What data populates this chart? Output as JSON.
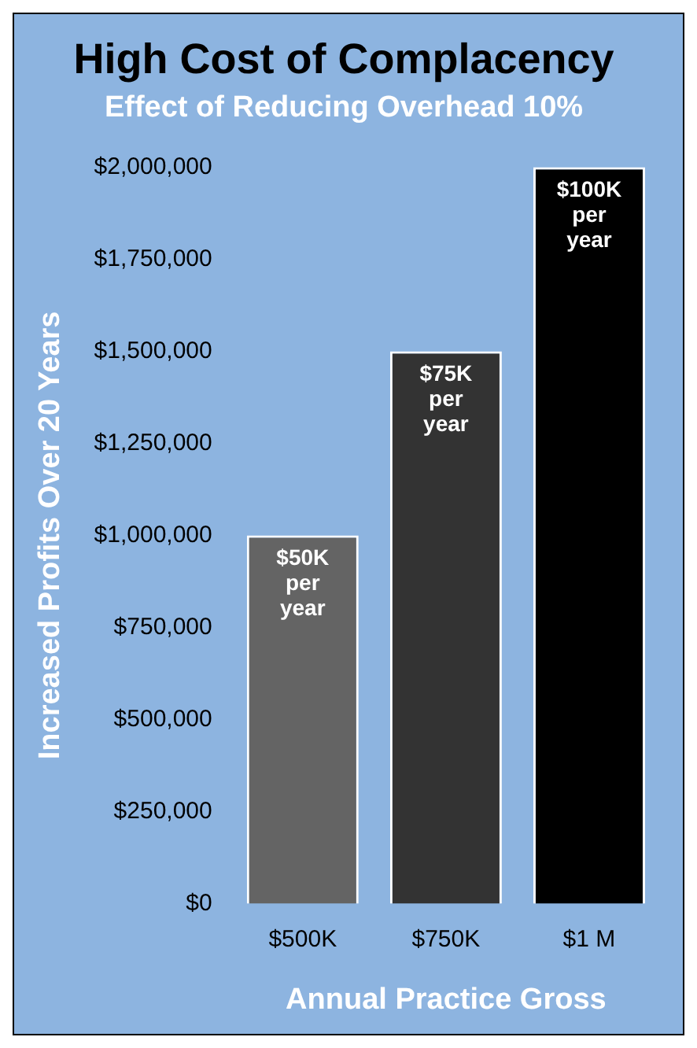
{
  "chart_data": {
    "type": "bar",
    "title": "High Cost of Complacency",
    "subtitle": "Effect of Reducing Overhead 10%",
    "xlabel": "Annual Practice Gross",
    "ylabel": "Increased Profits Over 20 Years",
    "categories": [
      "$500K",
      "$750K",
      "$1 M"
    ],
    "values": [
      1000000,
      1500000,
      2000000
    ],
    "colors": [
      "#646464",
      "#333333",
      "#000000"
    ],
    "annotations": [
      {
        "text": "$50K per year",
        "x": "$500K",
        "y": 1000000
      },
      {
        "text": "$75K per year",
        "x": "$750K",
        "y": 1500000
      },
      {
        "text": "$100K per year",
        "x": "$1 M",
        "y": 2000000
      }
    ],
    "ylim": [
      0,
      2000000
    ],
    "yticks": [
      {
        "value": 0,
        "label": "$0"
      },
      {
        "value": 250000,
        "label": "$250,000"
      },
      {
        "value": 500000,
        "label": "$500,000"
      },
      {
        "value": 750000,
        "label": "$750,000"
      },
      {
        "value": 1000000,
        "label": "$1,000,000"
      },
      {
        "value": 1250000,
        "label": "$1,250,000"
      },
      {
        "value": 1500000,
        "label": "$1,500,000"
      },
      {
        "value": 1750000,
        "label": "$1,750,000"
      },
      {
        "value": 2000000,
        "label": "$2,000,000"
      }
    ],
    "grid": false,
    "legend": false
  }
}
